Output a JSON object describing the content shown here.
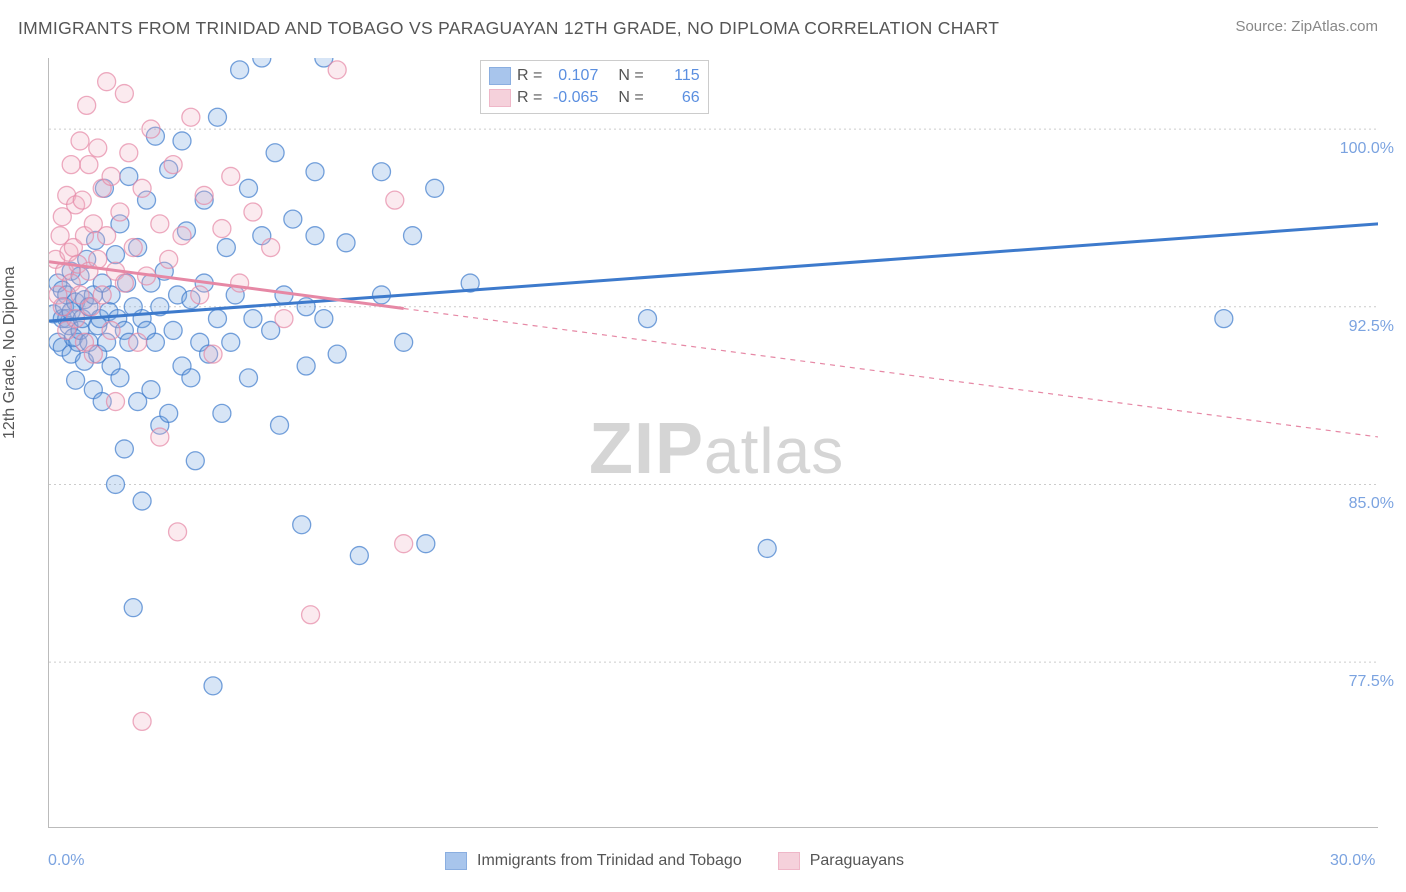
{
  "title": "IMMIGRANTS FROM TRINIDAD AND TOBAGO VS PARAGUAYAN 12TH GRADE, NO DIPLOMA CORRELATION CHART",
  "source": "Source: ZipAtlas.com",
  "ylabel": "12th Grade, No Diploma",
  "watermark_zip": "ZIP",
  "watermark_atlas": "atlas",
  "chart": {
    "type": "scatter",
    "xlim": [
      0.0,
      30.0
    ],
    "ylim": [
      70.5,
      103.0
    ],
    "x_tick_labels": {
      "0": "0.0%",
      "30": "30.0%"
    },
    "x_minor_ticks": [
      0.0,
      3.0,
      6.0,
      9.0,
      12.0,
      15.0,
      18.0,
      21.0,
      24.0,
      27.0,
      30.0
    ],
    "y_ticks": [
      77.5,
      85.0,
      92.5,
      100.0
    ],
    "y_tick_labels": [
      "77.5%",
      "85.0%",
      "92.5%",
      "100.0%"
    ],
    "y_grid": true,
    "grid_color": "#cccccc",
    "axis_color": "#bbbbbb",
    "background_color": "#ffffff",
    "marker_radius": 9,
    "marker_fill_opacity": 0.28,
    "marker_stroke_opacity": 0.7,
    "line_width_solid": 3,
    "line_width_dash": 1.2,
    "series": [
      {
        "name": "Immigrants from Trinidad and Tobago",
        "color": "#6fa0e0",
        "stroke": "#3d7acc",
        "R": "0.107",
        "N": "115",
        "trend": {
          "x1": 0.0,
          "y1": 91.9,
          "x2": 30.0,
          "y2": 96.0
        },
        "dash_from_x": null,
        "points": [
          [
            0.1,
            92.2
          ],
          [
            0.2,
            91.0
          ],
          [
            0.2,
            93.5
          ],
          [
            0.3,
            92.0
          ],
          [
            0.3,
            90.8
          ],
          [
            0.3,
            93.2
          ],
          [
            0.35,
            92.5
          ],
          [
            0.4,
            92.0
          ],
          [
            0.4,
            93.0
          ],
          [
            0.45,
            91.7
          ],
          [
            0.5,
            92.3
          ],
          [
            0.5,
            90.5
          ],
          [
            0.5,
            94.0
          ],
          [
            0.55,
            91.2
          ],
          [
            0.6,
            92.7
          ],
          [
            0.6,
            89.4
          ],
          [
            0.65,
            91.0
          ],
          [
            0.7,
            93.8
          ],
          [
            0.7,
            91.5
          ],
          [
            0.75,
            92.0
          ],
          [
            0.8,
            92.8
          ],
          [
            0.8,
            90.2
          ],
          [
            0.85,
            94.5
          ],
          [
            0.9,
            91.0
          ],
          [
            0.9,
            92.5
          ],
          [
            1.0,
            93.0
          ],
          [
            1.0,
            89.0
          ],
          [
            1.05,
            95.3
          ],
          [
            1.1,
            91.7
          ],
          [
            1.1,
            90.5
          ],
          [
            1.15,
            92.0
          ],
          [
            1.2,
            93.5
          ],
          [
            1.2,
            88.5
          ],
          [
            1.25,
            97.5
          ],
          [
            1.3,
            91.0
          ],
          [
            1.35,
            92.3
          ],
          [
            1.4,
            90.0
          ],
          [
            1.4,
            93.0
          ],
          [
            1.5,
            85.0
          ],
          [
            1.5,
            94.7
          ],
          [
            1.55,
            92.0
          ],
          [
            1.6,
            96.0
          ],
          [
            1.6,
            89.5
          ],
          [
            1.7,
            91.5
          ],
          [
            1.7,
            86.5
          ],
          [
            1.75,
            93.5
          ],
          [
            1.8,
            98.0
          ],
          [
            1.8,
            91.0
          ],
          [
            1.9,
            79.8
          ],
          [
            1.9,
            92.5
          ],
          [
            2.0,
            88.5
          ],
          [
            2.0,
            95.0
          ],
          [
            2.1,
            92.0
          ],
          [
            2.1,
            84.3
          ],
          [
            2.2,
            91.5
          ],
          [
            2.2,
            97.0
          ],
          [
            2.3,
            89.0
          ],
          [
            2.3,
            93.5
          ],
          [
            2.4,
            99.7
          ],
          [
            2.4,
            91.0
          ],
          [
            2.5,
            92.5
          ],
          [
            2.5,
            87.5
          ],
          [
            2.6,
            94.0
          ],
          [
            2.7,
            88.0
          ],
          [
            2.7,
            98.3
          ],
          [
            2.8,
            91.5
          ],
          [
            2.9,
            93.0
          ],
          [
            3.0,
            99.5
          ],
          [
            3.0,
            90.0
          ],
          [
            3.1,
            95.7
          ],
          [
            3.2,
            89.5
          ],
          [
            3.2,
            92.8
          ],
          [
            3.3,
            86.0
          ],
          [
            3.4,
            91.0
          ],
          [
            3.5,
            97.0
          ],
          [
            3.5,
            93.5
          ],
          [
            3.6,
            90.5
          ],
          [
            3.7,
            76.5
          ],
          [
            3.8,
            92.0
          ],
          [
            3.8,
            100.5
          ],
          [
            3.9,
            88.0
          ],
          [
            4.0,
            95.0
          ],
          [
            4.1,
            91.0
          ],
          [
            4.2,
            93.0
          ],
          [
            4.3,
            102.5
          ],
          [
            4.5,
            89.5
          ],
          [
            4.5,
            97.5
          ],
          [
            4.6,
            92.0
          ],
          [
            4.8,
            95.5
          ],
          [
            4.8,
            103.0
          ],
          [
            5.0,
            91.5
          ],
          [
            5.1,
            99.0
          ],
          [
            5.2,
            87.5
          ],
          [
            5.3,
            93.0
          ],
          [
            5.5,
            96.2
          ],
          [
            5.7,
            83.3
          ],
          [
            5.8,
            92.5
          ],
          [
            5.8,
            90.0
          ],
          [
            6.0,
            95.5
          ],
          [
            6.0,
            98.2
          ],
          [
            6.2,
            92.0
          ],
          [
            6.2,
            103.0
          ],
          [
            6.5,
            90.5
          ],
          [
            6.7,
            95.2
          ],
          [
            7.0,
            82.0
          ],
          [
            7.5,
            93.0
          ],
          [
            7.5,
            98.2
          ],
          [
            8.0,
            91.0
          ],
          [
            8.2,
            95.5
          ],
          [
            8.5,
            82.5
          ],
          [
            8.7,
            97.5
          ],
          [
            9.5,
            93.5
          ],
          [
            13.5,
            92.0
          ],
          [
            16.2,
            82.3
          ],
          [
            26.5,
            92.0
          ]
        ]
      },
      {
        "name": "Paraguayans",
        "color": "#f0b3c4",
        "stroke": "#e688a5",
        "R": "-0.065",
        "N": "66",
        "trend": {
          "x1": 0.0,
          "y1": 94.4,
          "x2": 30.0,
          "y2": 87.0
        },
        "dash_from_x": 8.0,
        "points": [
          [
            0.15,
            94.5
          ],
          [
            0.2,
            93.0
          ],
          [
            0.25,
            95.5
          ],
          [
            0.3,
            92.5
          ],
          [
            0.3,
            96.3
          ],
          [
            0.35,
            94.0
          ],
          [
            0.4,
            91.5
          ],
          [
            0.4,
            97.2
          ],
          [
            0.45,
            94.8
          ],
          [
            0.5,
            93.5
          ],
          [
            0.5,
            98.5
          ],
          [
            0.55,
            95.0
          ],
          [
            0.6,
            92.0
          ],
          [
            0.6,
            96.8
          ],
          [
            0.65,
            94.3
          ],
          [
            0.7,
            99.5
          ],
          [
            0.7,
            93.0
          ],
          [
            0.75,
            97.0
          ],
          [
            0.8,
            91.0
          ],
          [
            0.8,
            95.5
          ],
          [
            0.85,
            101.0
          ],
          [
            0.9,
            94.0
          ],
          [
            0.9,
            98.5
          ],
          [
            0.95,
            92.5
          ],
          [
            1.0,
            96.0
          ],
          [
            1.0,
            90.5
          ],
          [
            1.1,
            99.2
          ],
          [
            1.1,
            94.5
          ],
          [
            1.2,
            97.5
          ],
          [
            1.2,
            93.0
          ],
          [
            1.3,
            102.0
          ],
          [
            1.3,
            95.5
          ],
          [
            1.4,
            91.5
          ],
          [
            1.4,
            98.0
          ],
          [
            1.5,
            94.0
          ],
          [
            1.5,
            88.5
          ],
          [
            1.6,
            96.5
          ],
          [
            1.7,
            101.5
          ],
          [
            1.7,
            93.5
          ],
          [
            1.8,
            99.0
          ],
          [
            1.9,
            95.0
          ],
          [
            2.0,
            91.0
          ],
          [
            2.1,
            97.5
          ],
          [
            2.1,
            75.0
          ],
          [
            2.2,
            93.8
          ],
          [
            2.3,
            100.0
          ],
          [
            2.5,
            96.0
          ],
          [
            2.5,
            87.0
          ],
          [
            2.7,
            94.5
          ],
          [
            2.8,
            98.5
          ],
          [
            2.9,
            83.0
          ],
          [
            3.0,
            95.5
          ],
          [
            3.2,
            100.5
          ],
          [
            3.4,
            93.0
          ],
          [
            3.5,
            97.2
          ],
          [
            3.7,
            90.5
          ],
          [
            3.9,
            95.8
          ],
          [
            4.1,
            98.0
          ],
          [
            4.3,
            93.5
          ],
          [
            4.6,
            96.5
          ],
          [
            5.0,
            95.0
          ],
          [
            5.3,
            92.0
          ],
          [
            5.9,
            79.5
          ],
          [
            6.5,
            102.5
          ],
          [
            7.8,
            97.0
          ],
          [
            8.0,
            82.5
          ]
        ]
      }
    ]
  },
  "legend_top": {
    "r_label": "R =",
    "n_label": "N ="
  },
  "legend_bottom": {
    "series1": "Immigrants from Trinidad and Tobago",
    "series2": "Paraguayans"
  }
}
